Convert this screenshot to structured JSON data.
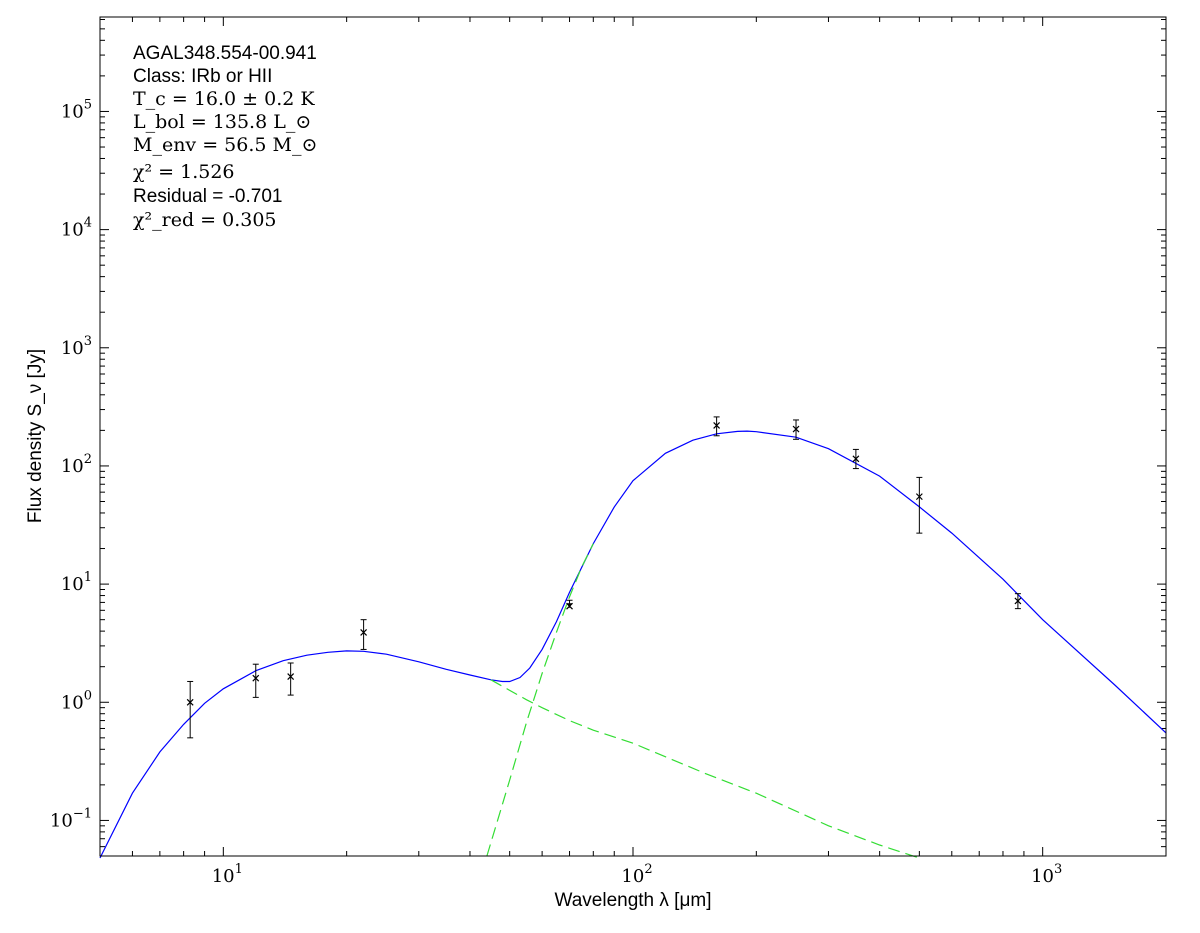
{
  "chart_data": {
    "type": "scatter",
    "x_scale": "log",
    "y_scale": "log",
    "xlim": [
      5,
      2000
    ],
    "ylim": [
      0.05,
      630000
    ],
    "xlabel": "Wavelength λ [μm]",
    "ylabel": "Flux density S_ν [Jy]",
    "x_ticks": [
      {
        "value": 10,
        "base": "10",
        "exp": "1"
      },
      {
        "value": 100,
        "base": "10",
        "exp": "2"
      },
      {
        "value": 1000,
        "base": "10",
        "exp": "3"
      }
    ],
    "y_ticks": [
      {
        "value": 0.1,
        "base": "10",
        "exp": "−1"
      },
      {
        "value": 1,
        "base": "10",
        "exp": "0"
      },
      {
        "value": 10,
        "base": "10",
        "exp": "1"
      },
      {
        "value": 100,
        "base": "10",
        "exp": "2"
      },
      {
        "value": 1000,
        "base": "10",
        "exp": "3"
      },
      {
        "value": 10000,
        "base": "10",
        "exp": "4"
      },
      {
        "value": 100000,
        "base": "10",
        "exp": "5"
      }
    ],
    "annotations": {
      "source": "AGAL348.554-00.941",
      "class": "Class: IRb or HII",
      "tc": "T_c = 16.0 ± 0.2 K",
      "lbol": "L_bol = 135.8 L_⊙",
      "menv": "M_env = 56.5 M_⊙",
      "chi2": "χ² = 1.526",
      "residual": "Residual = -0.701",
      "chi2red": "χ²_red = 0.305"
    },
    "points": [
      {
        "x": 8.3,
        "y": 1.0,
        "lo": 0.5,
        "hi": 1.5
      },
      {
        "x": 12.0,
        "y": 1.6,
        "lo": 1.1,
        "hi": 2.1
      },
      {
        "x": 14.6,
        "y": 1.65,
        "lo": 1.15,
        "hi": 2.15
      },
      {
        "x": 22.0,
        "y": 3.9,
        "lo": 2.8,
        "hi": 5.0
      },
      {
        "x": 70.0,
        "y": 6.5,
        "lo": 6.5,
        "hi": 7.3,
        "upper_limit": true
      },
      {
        "x": 160.0,
        "y": 220,
        "lo": 180,
        "hi": 260
      },
      {
        "x": 250.0,
        "y": 205,
        "lo": 168,
        "hi": 245
      },
      {
        "x": 350.0,
        "y": 115,
        "lo": 95,
        "hi": 138
      },
      {
        "x": 500.0,
        "y": 55,
        "lo": 27,
        "hi": 80
      },
      {
        "x": 870.0,
        "y": 7.2,
        "lo": 6.2,
        "hi": 8.3
      }
    ],
    "series": [
      {
        "kind": "total",
        "color": "#0000ff",
        "dash": "solid",
        "x": [
          5,
          6,
          7,
          8,
          9,
          10,
          12,
          14,
          16,
          18,
          20,
          22,
          25,
          30,
          35,
          40,
          45,
          48,
          50,
          53,
          56,
          60,
          65,
          70,
          80,
          90,
          100,
          120,
          140,
          160,
          180,
          190,
          200,
          250,
          300,
          400,
          500,
          600,
          800,
          1000,
          1500,
          2000
        ],
        "y": [
          0.043,
          0.17,
          0.38,
          0.65,
          0.98,
          1.3,
          1.85,
          2.25,
          2.5,
          2.65,
          2.72,
          2.7,
          2.55,
          2.2,
          1.9,
          1.7,
          1.55,
          1.5,
          1.5,
          1.62,
          1.95,
          2.8,
          4.8,
          8.5,
          22,
          45,
          75,
          128,
          165,
          187,
          196,
          197,
          195,
          175,
          140,
          82,
          45,
          27,
          11,
          5.0,
          1.4,
          0.55
        ]
      },
      {
        "kind": "hot-component",
        "color": "#33dd33",
        "dash": "dashed",
        "x": [
          45,
          55,
          60,
          70,
          80,
          100,
          150,
          200,
          300,
          400,
          500
        ],
        "y": [
          1.55,
          1.05,
          0.9,
          0.7,
          0.58,
          0.45,
          0.25,
          0.17,
          0.09,
          0.062,
          0.048
        ]
      },
      {
        "kind": "cold-component",
        "color": "#33dd33",
        "dash": "dashed",
        "x": [
          44,
          50,
          55,
          60,
          65,
          70,
          75,
          80
        ],
        "y": [
          0.05,
          0.22,
          0.68,
          1.75,
          3.9,
          7.8,
          14,
          22
        ]
      }
    ]
  }
}
